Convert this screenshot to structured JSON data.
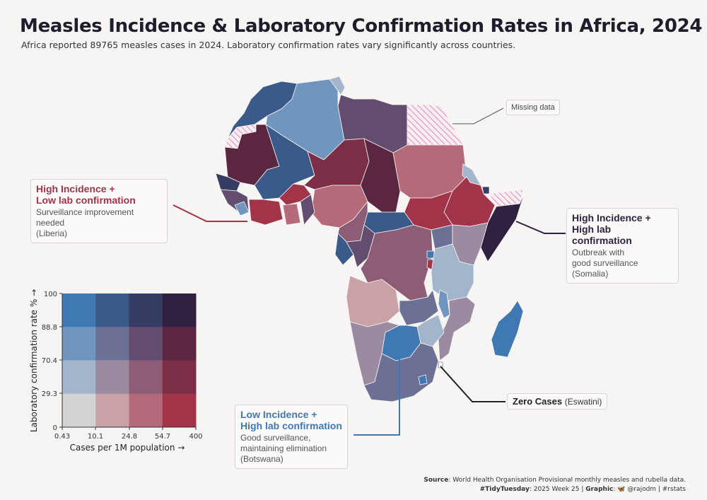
{
  "header": {
    "title": "Measles Incidence & Laboratory Confirmation Rates in Africa, 2024",
    "subtitle": "Africa reported 89765 measles cases in 2024. Laboratory confirmation rates vary significantly across countries."
  },
  "annotations": {
    "missing": "Missing data",
    "liberia": {
      "head_line1": "High Incidence +",
      "head_line2": "Low lab confirmation",
      "body_line1": "Surveillance improvement needed",
      "body_line2": "(Liberia)"
    },
    "somalia": {
      "head_line1": "High Incidence +",
      "head_line2": "High lab confirmation",
      "body_line1": "Outbreak with",
      "body_line2": "good surveillance (Somalia)"
    },
    "botswana": {
      "head_line1": "Low Incidence +",
      "head_line2": "High lab confirmation",
      "body_line1": "Good surveillance,",
      "body_line2": "maintaining elimination",
      "body_line3": "(Botswana)"
    },
    "eswatini": {
      "head": "Zero Cases",
      "country": "(Eswatini)"
    }
  },
  "legend": {
    "y_label": "Laboratory confirmation rate % →",
    "x_label": "Cases per 1M population →",
    "y_ticks": [
      "0",
      "29.3",
      "70.4",
      "88.8",
      "100"
    ],
    "x_ticks": [
      "0.43",
      "10.1",
      "24.8",
      "54.7",
      "400"
    ],
    "grid_rows_top_to_bottom": [
      [
        "#3f78b3",
        "#3a5a8a",
        "#363c63",
        "#2f2240"
      ],
      [
        "#7096bf",
        "#6c7095",
        "#624d6e",
        "#5b2640"
      ],
      [
        "#a2b5ca",
        "#9a8ba1",
        "#8c5d75",
        "#7c2e47"
      ],
      [
        "#d3d3d3",
        "#c9a1a7",
        "#b56a7a",
        "#a23449"
      ]
    ]
  },
  "colors": {
    "background": "#f7f5f3",
    "liberia_head": "#a23449",
    "somalia_head": "#2f2240",
    "botswana_head": "#3f78b3",
    "missing_hatch": "#e88fb8"
  },
  "footer": {
    "source_label": "Source",
    "source_text": ": World Health Organisation Provisional monthly measles and rubella data.",
    "tt_label": "#TidyTuesday",
    "tt_text": ": 2025 Week 25 | ",
    "graphic_label": "Graphic",
    "graphic_text": ": 🦋 @rajodm | #rstats"
  }
}
